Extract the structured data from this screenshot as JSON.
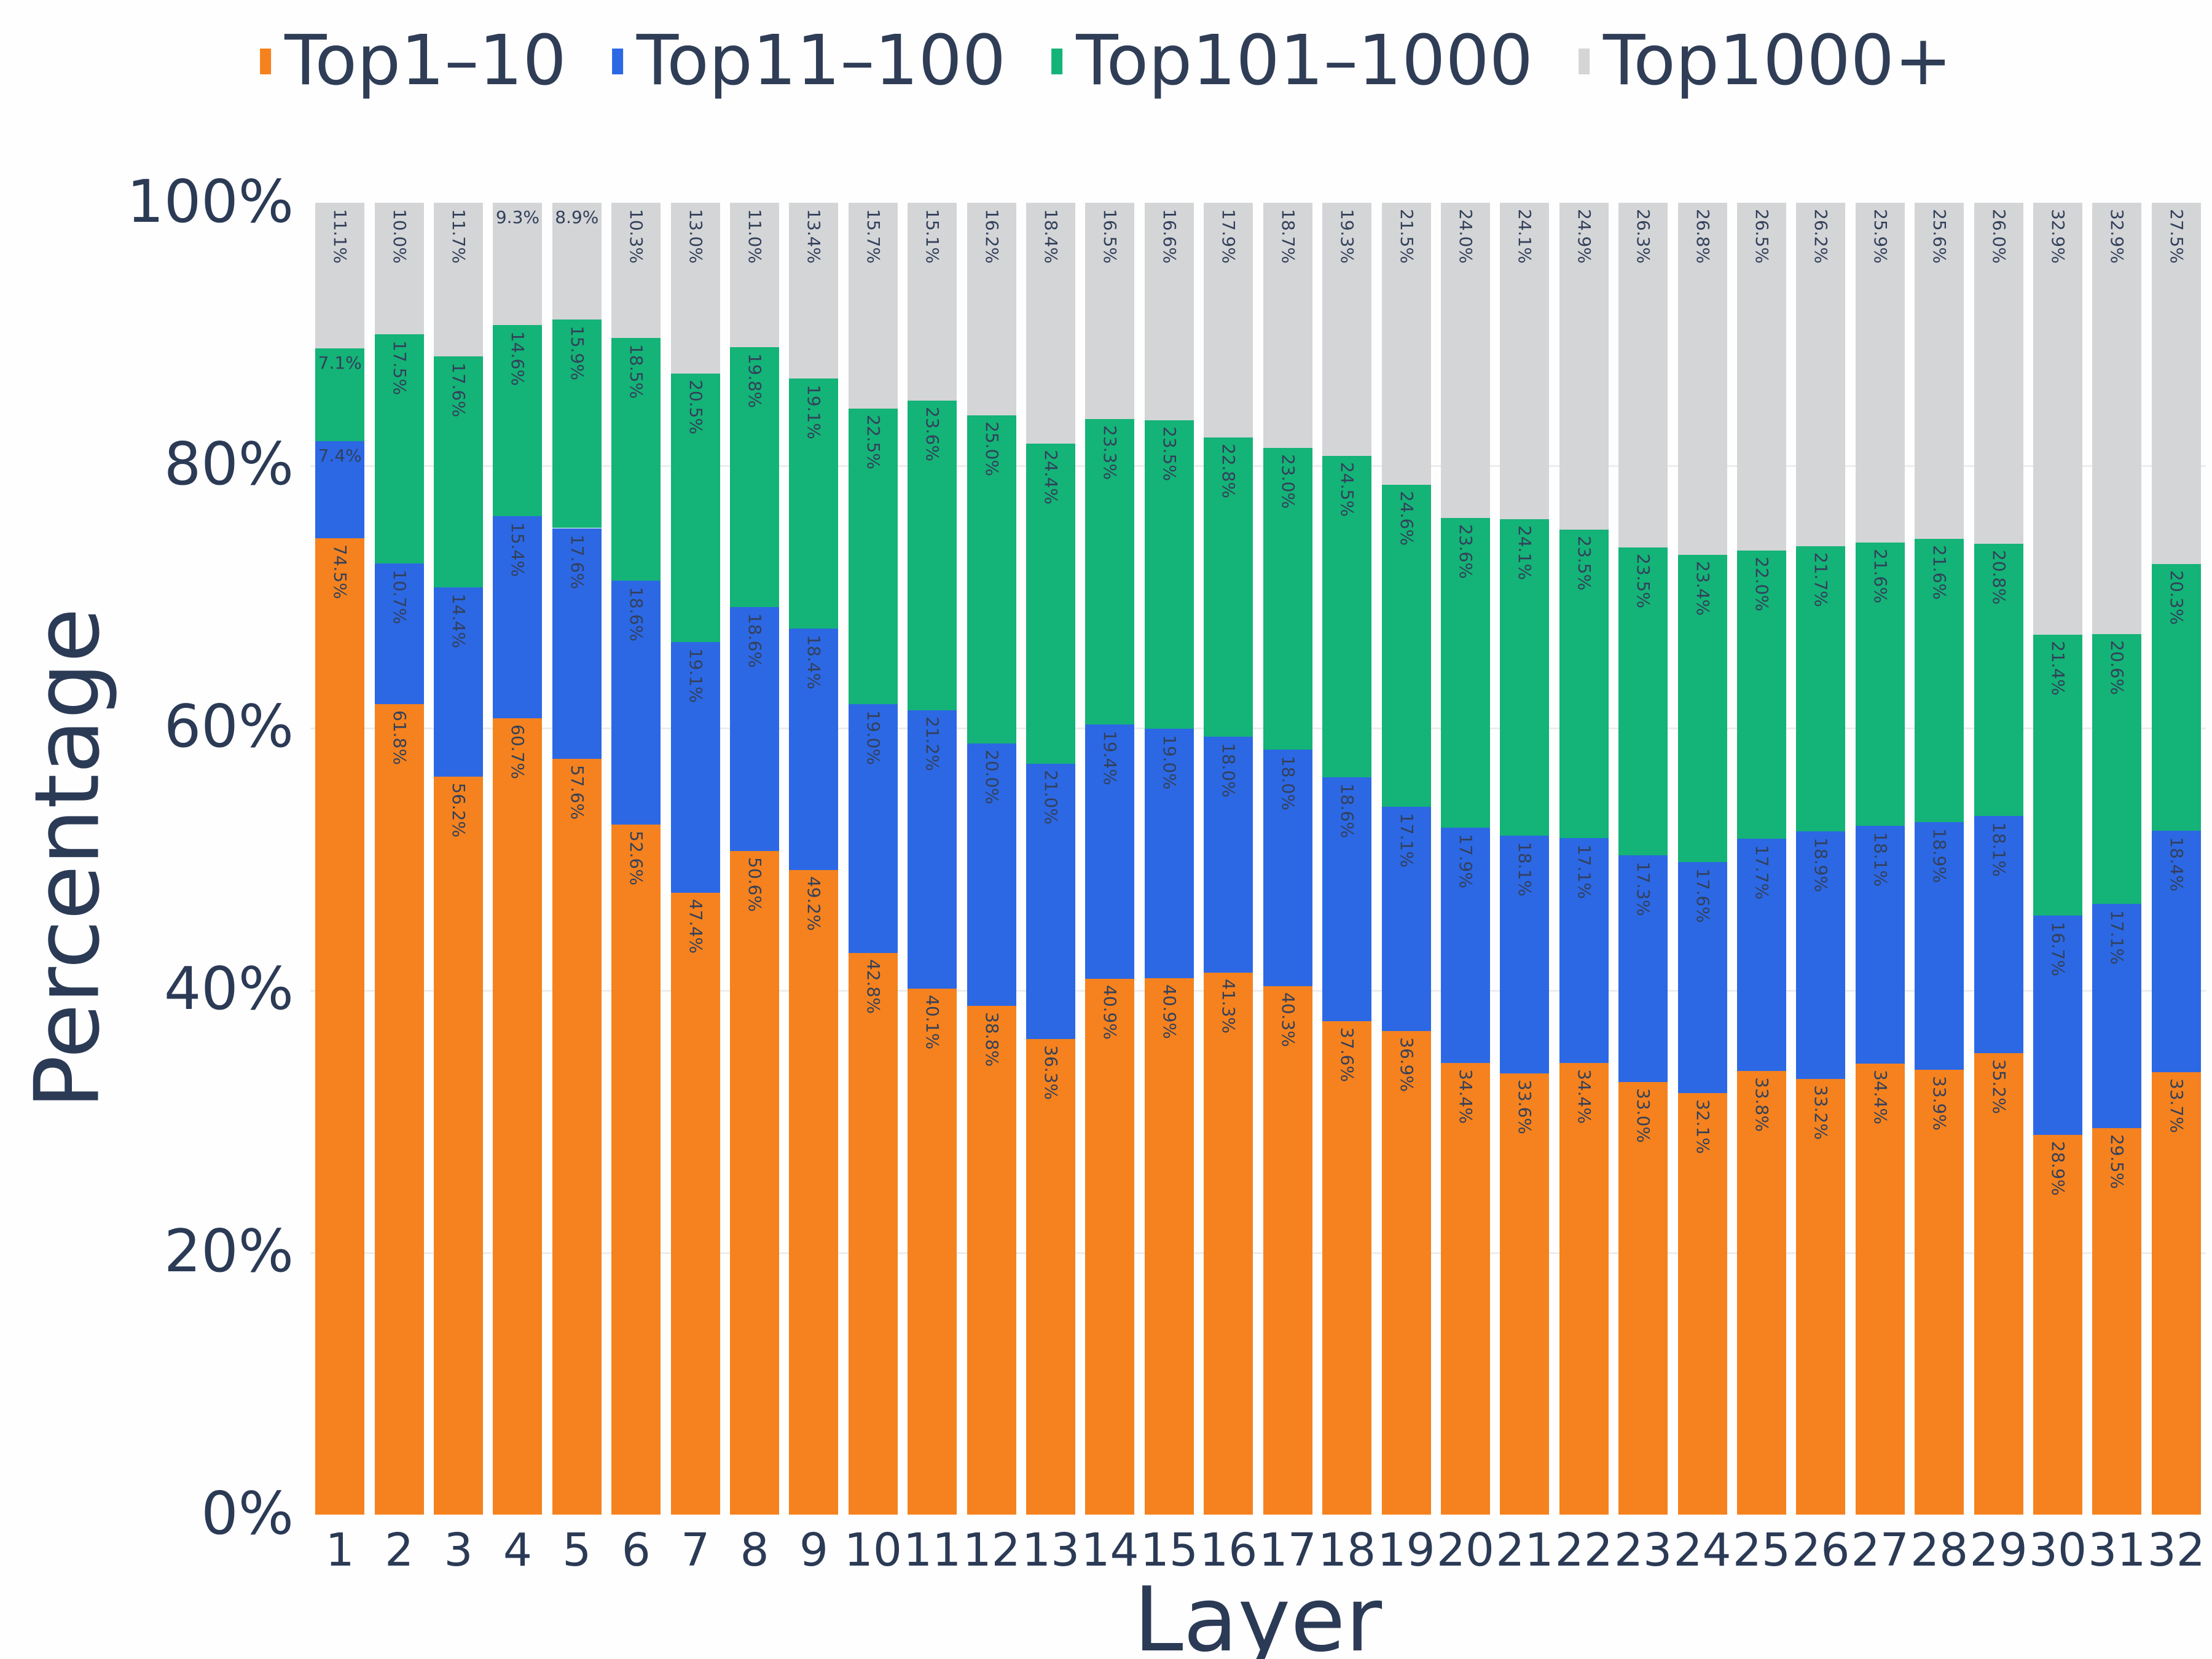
{
  "colors": {
    "orange": "#f5821e",
    "blue": "#2c68e4",
    "green": "#14b377",
    "gray": "#d4d5d7",
    "axis_text": "#2b3a55",
    "bar_label_text": "#33405a",
    "gridline": "#ededed",
    "background": "#fefefe"
  },
  "legend": {
    "position": "top-center",
    "items": [
      {
        "label": "Top1–10",
        "color": "#f5821e"
      },
      {
        "label": "Top11–100",
        "color": "#2c68e4"
      },
      {
        "label": "Top101–1000",
        "color": "#14b377"
      },
      {
        "label": "Top1000+",
        "color": "#d4d5d7"
      }
    ]
  },
  "chart_data": {
    "type": "bar",
    "stacked": true,
    "units": "percent",
    "title": "",
    "xlabel": "Layer",
    "ylabel": "Percentage",
    "ylim": [
      0,
      100
    ],
    "y_ticks": [
      "0%",
      "20%",
      "40%",
      "60%",
      "80%",
      "100%"
    ],
    "grid": "horizontal-faint",
    "legend_position": "top",
    "bar_label_format": "one-decimal-percent",
    "categories": [
      1,
      2,
      3,
      4,
      5,
      6,
      7,
      8,
      9,
      10,
      11,
      12,
      13,
      14,
      15,
      16,
      17,
      18,
      19,
      20,
      21,
      22,
      23,
      24,
      25,
      26,
      27,
      28,
      29,
      30,
      31,
      32
    ],
    "series": [
      {
        "name": "Top1–10",
        "color": "#f5821e",
        "values": [
          74.5,
          61.8,
          56.2,
          60.7,
          57.6,
          52.6,
          47.4,
          50.6,
          49.2,
          42.8,
          40.1,
          38.8,
          36.3,
          40.9,
          40.9,
          41.3,
          40.3,
          37.6,
          36.9,
          34.4,
          33.6,
          34.4,
          33.0,
          32.1,
          33.8,
          33.2,
          34.4,
          33.9,
          35.2,
          28.9,
          29.5,
          33.7
        ]
      },
      {
        "name": "Top11–100",
        "color": "#2c68e4",
        "values": [
          7.4,
          10.7,
          14.4,
          15.4,
          17.6,
          18.6,
          19.1,
          18.6,
          18.4,
          19.0,
          21.2,
          20.0,
          21.0,
          19.4,
          19.0,
          18.0,
          18.0,
          18.6,
          17.1,
          17.9,
          18.1,
          17.1,
          17.3,
          17.6,
          17.7,
          18.9,
          18.1,
          18.9,
          18.1,
          16.7,
          17.1,
          18.4
        ]
      },
      {
        "name": "Top101–1000",
        "color": "#14b377",
        "values": [
          7.1,
          17.5,
          17.6,
          14.6,
          15.9,
          18.5,
          20.5,
          19.8,
          19.1,
          22.5,
          23.6,
          25.0,
          24.4,
          23.3,
          23.5,
          22.8,
          23.0,
          24.5,
          24.6,
          23.6,
          24.1,
          23.5,
          23.5,
          23.4,
          22.0,
          21.7,
          21.6,
          21.6,
          20.8,
          21.4,
          20.6,
          20.3
        ]
      },
      {
        "name": "Top1000+",
        "color": "#d4d5d7",
        "values": [
          11.1,
          10.0,
          11.7,
          9.3,
          8.9,
          10.3,
          13.0,
          11.0,
          13.4,
          15.7,
          15.1,
          16.2,
          18.4,
          16.5,
          16.6,
          17.9,
          18.7,
          19.3,
          21.5,
          24.0,
          24.1,
          24.9,
          26.3,
          26.8,
          26.5,
          26.2,
          25.9,
          25.6,
          26.0,
          32.9,
          32.9,
          27.5
        ]
      }
    ]
  }
}
